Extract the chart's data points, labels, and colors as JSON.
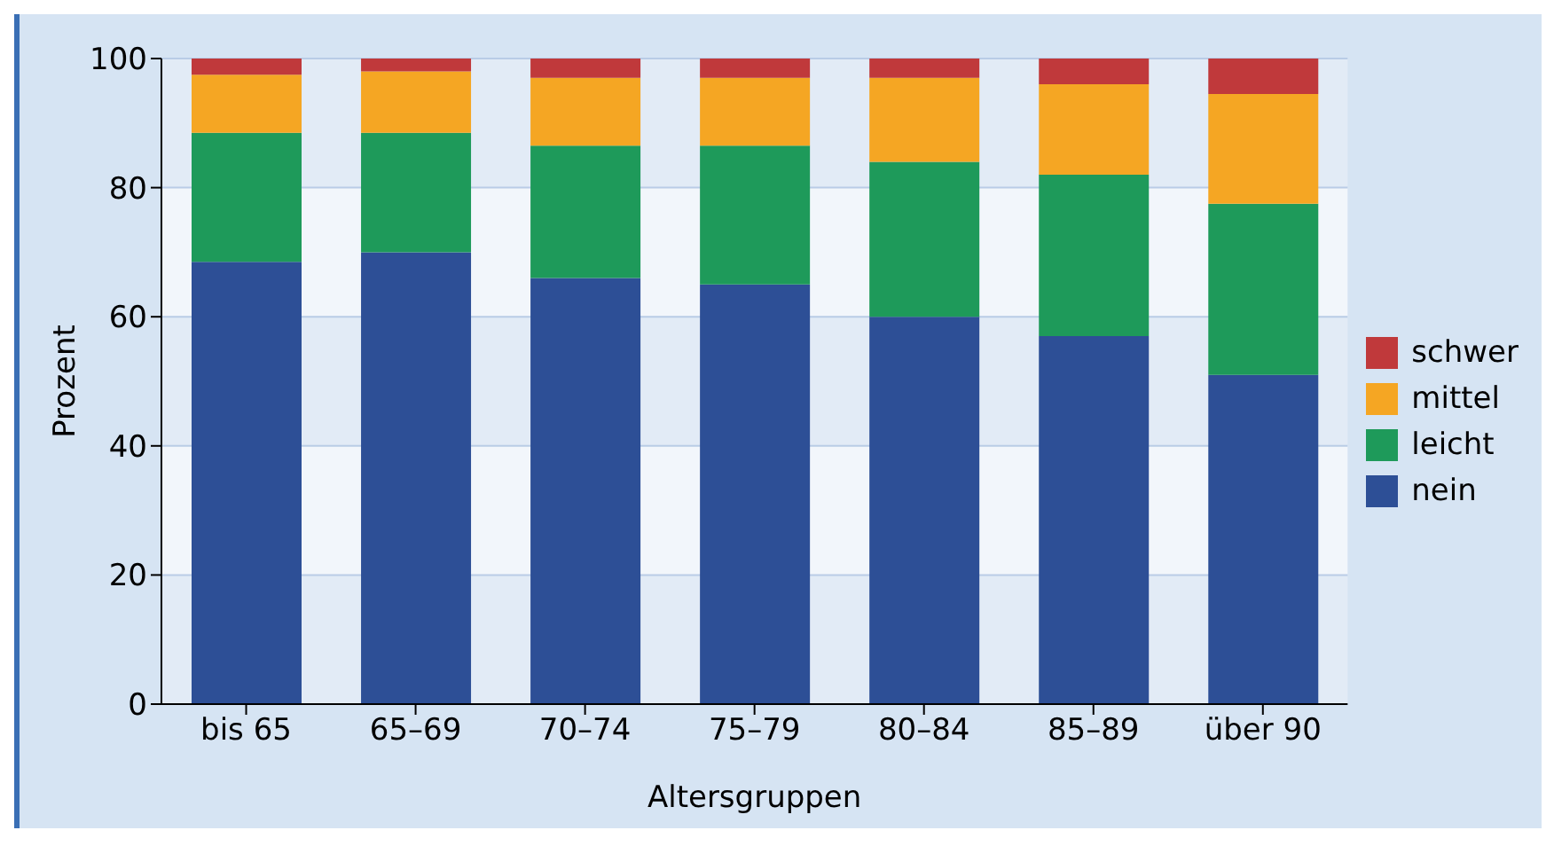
{
  "chart_data": {
    "type": "bar",
    "stacked": true,
    "xlabel": "Altersgruppen",
    "ylabel": "Prozent",
    "categories": [
      "bis 65",
      "65–69",
      "70–74",
      "75–79",
      "80–84",
      "85–89",
      "über 90"
    ],
    "series": [
      {
        "name": "nein",
        "color": "#2d4f96",
        "values": [
          68.5,
          70,
          66,
          65,
          60,
          57,
          51
        ]
      },
      {
        "name": "leicht",
        "color": "#1e9a5a",
        "values": [
          20,
          18.5,
          20.5,
          21.5,
          24,
          25,
          26.5
        ]
      },
      {
        "name": "mittel",
        "color": "#f5a623",
        "values": [
          9,
          9.5,
          10.5,
          10.5,
          13,
          14,
          17
        ]
      },
      {
        "name": "schwer",
        "color": "#c0393b",
        "values": [
          2.5,
          2,
          3,
          3,
          3,
          4,
          5.5
        ]
      }
    ],
    "ylim": [
      0,
      100
    ],
    "yticks": [
      0,
      20,
      40,
      60,
      80,
      100
    ],
    "grid": "y",
    "legend": "right"
  }
}
